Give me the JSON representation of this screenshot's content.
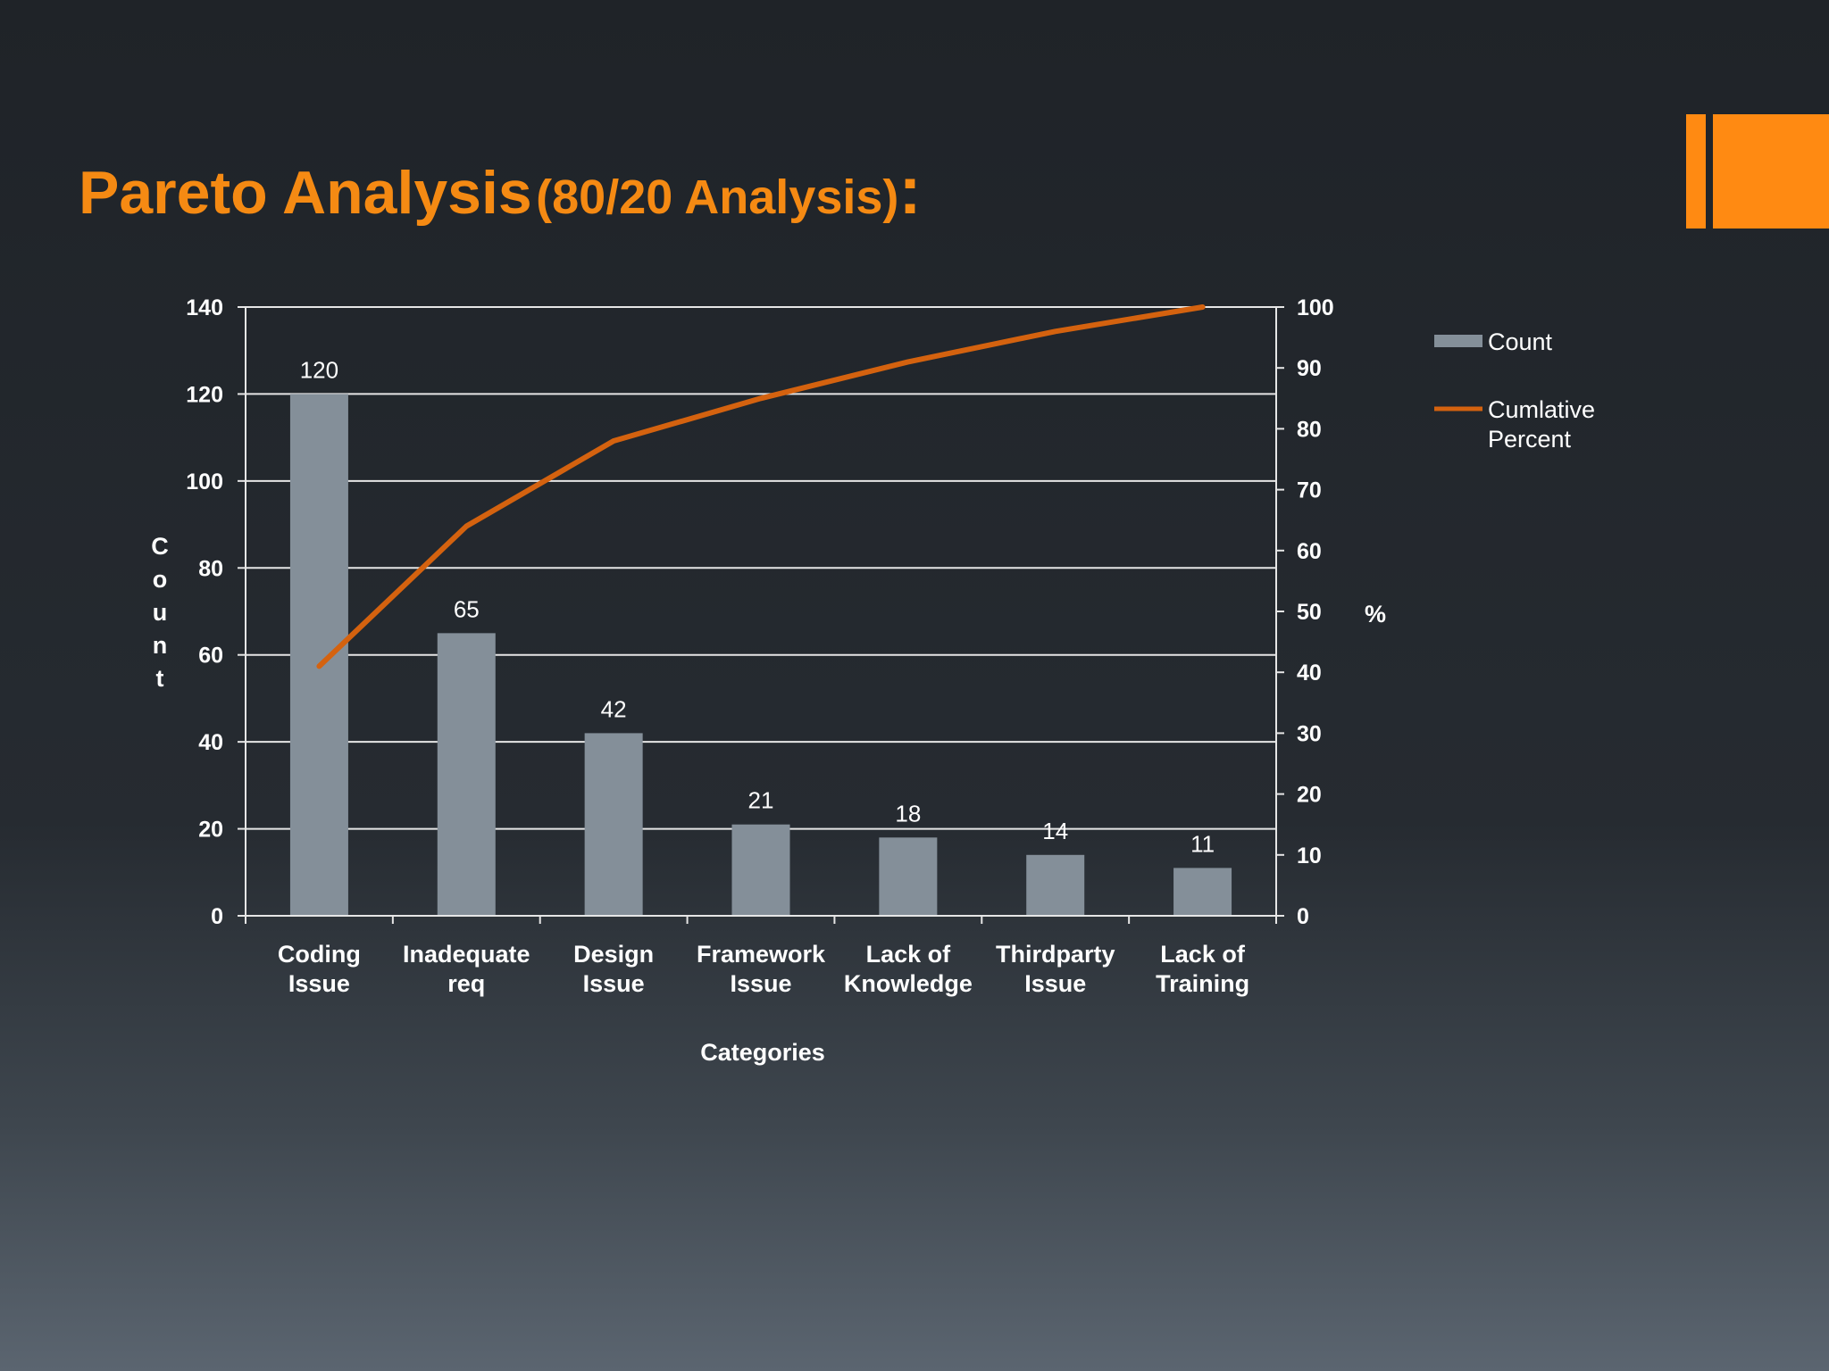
{
  "slide": {
    "title_main": "Pareto Analysis",
    "title_sub": "(80/20 Analysis)",
    "title_colon": ":"
  },
  "colors": {
    "accent": "#f58a13",
    "bar": "#848f99",
    "line": "#d4620f",
    "grid": "#e6e6e6",
    "text": "#ffffff"
  },
  "chart_data": {
    "type": "bar",
    "categories": [
      [
        "Coding",
        "Issue"
      ],
      [
        "Inadequate",
        "req"
      ],
      [
        "Design",
        "Issue"
      ],
      [
        "Framework",
        "Issue"
      ],
      [
        "Lack of",
        "Knowledge"
      ],
      [
        "Thirdparty",
        "Issue"
      ],
      [
        "Lack of",
        "Training"
      ]
    ],
    "series": [
      {
        "name": "Count",
        "type": "bar",
        "axis": "left",
        "values": [
          120,
          65,
          42,
          21,
          18,
          14,
          11
        ]
      },
      {
        "name": "Cumlative Percent",
        "type": "line",
        "axis": "right",
        "values": [
          41,
          64,
          78,
          85,
          91,
          96,
          100
        ]
      }
    ],
    "data_labels": [
      "120",
      "65",
      "42",
      "21",
      "18",
      "14",
      "11"
    ],
    "xlabel": "Categories",
    "ylabel": "Count",
    "y2label": "%",
    "ylim": [
      0,
      140
    ],
    "yticks": [
      0,
      20,
      40,
      60,
      80,
      100,
      120,
      140
    ],
    "y2lim": [
      0,
      100
    ],
    "y2ticks": [
      0,
      10,
      20,
      30,
      40,
      50,
      60,
      70,
      80,
      90,
      100
    ],
    "grid": true,
    "legend_position": "right"
  }
}
